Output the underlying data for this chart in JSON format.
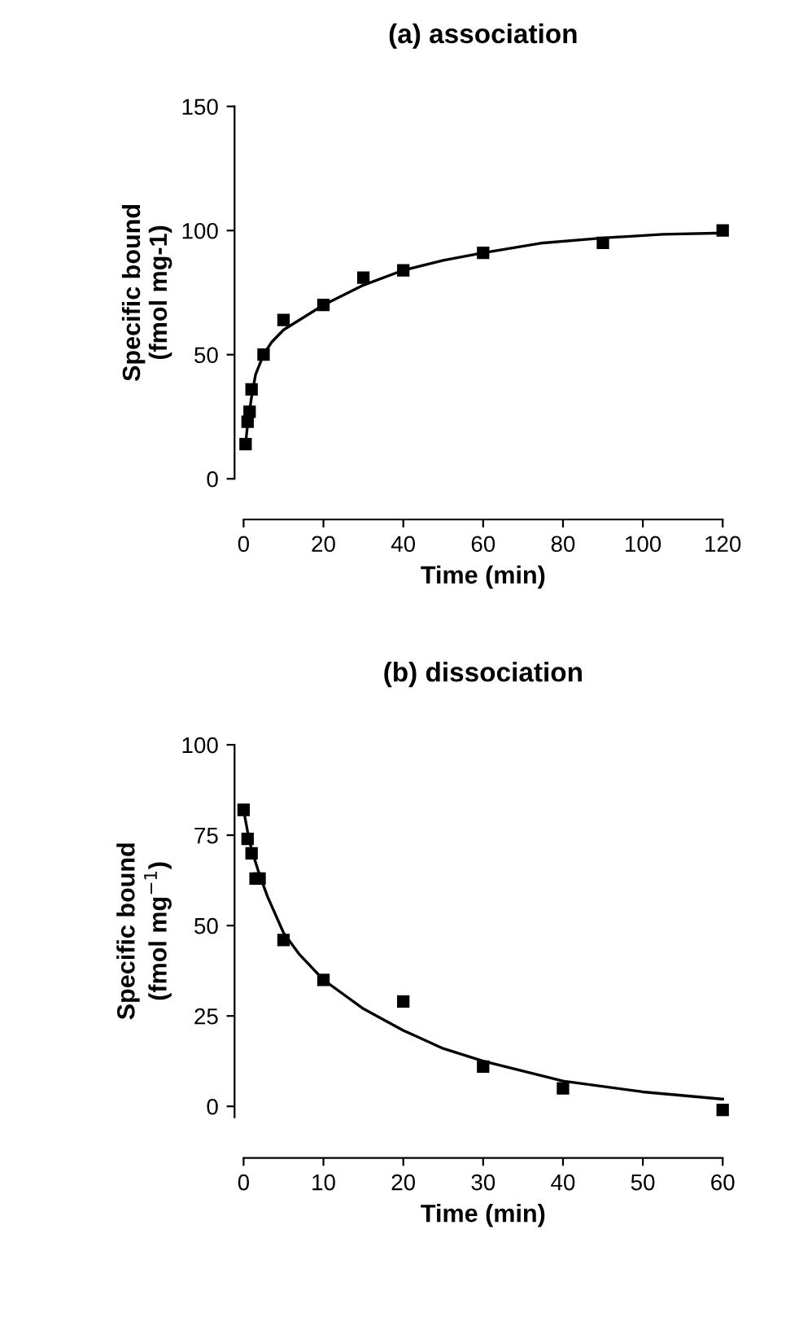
{
  "chart_data": [
    {
      "type": "scatter",
      "title": "(a) association",
      "xlabel": "Time (min)",
      "ylabel": "Specific bound\n(fmol mg-1)",
      "xlim": [
        0,
        120
      ],
      "xticks": [
        0,
        20,
        40,
        60,
        80,
        100,
        120
      ],
      "ylim": [
        0,
        150
      ],
      "yticks": [
        0,
        50,
        100,
        150
      ],
      "grid": false,
      "legend": false,
      "series": [
        {
          "marker": "square",
          "color": "#000000",
          "x": [
            0.5,
            1,
            1.5,
            2,
            5,
            10,
            20,
            30,
            40,
            60,
            90,
            120
          ],
          "values": [
            14,
            23,
            27,
            36,
            50,
            64,
            70,
            81,
            84,
            91,
            95,
            100
          ]
        },
        {
          "type": "line",
          "color": "#000000",
          "line_style": "solid",
          "x": [
            0.5,
            1,
            2,
            3,
            5,
            7,
            10,
            15,
            20,
            30,
            40,
            50,
            60,
            75,
            90,
            105,
            120
          ],
          "values": [
            14,
            22,
            33,
            42,
            50,
            55,
            60,
            65,
            70,
            78,
            84,
            88,
            91,
            95,
            97,
            98.5,
            99
          ]
        }
      ]
    },
    {
      "type": "scatter",
      "title": "(b) dissociation",
      "xlabel": "Time (min)",
      "ylabel": "Specific bound\n(fmol mg$^{−1}$)",
      "xlim": [
        0,
        60
      ],
      "xticks": [
        0,
        10,
        20,
        30,
        40,
        50,
        60
      ],
      "ylim": [
        -3,
        100
      ],
      "yticks": [
        0,
        25,
        50,
        75,
        100
      ],
      "grid": false,
      "legend": false,
      "series": [
        {
          "marker": "square",
          "color": "#000000",
          "x": [
            0,
            0.5,
            1,
            1.5,
            2,
            5,
            10,
            20,
            30,
            40,
            60
          ],
          "values": [
            82,
            74,
            70,
            63,
            63,
            46,
            35,
            29,
            11,
            5,
            -1
          ]
        },
        {
          "type": "line",
          "color": "#000000",
          "line_style": "solid",
          "x": [
            0,
            0.5,
            1,
            2,
            3,
            5,
            7,
            10,
            15,
            20,
            25,
            30,
            40,
            50,
            60
          ],
          "values": [
            82,
            76,
            71,
            64,
            58,
            48,
            42,
            35,
            27,
            21,
            16,
            12.5,
            7,
            4,
            2
          ]
        }
      ]
    }
  ]
}
